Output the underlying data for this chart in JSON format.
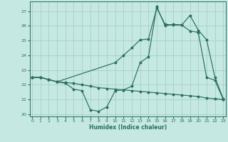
{
  "xlabel": "Humidex (Indice chaleur)",
  "background_color": "#c5e8e2",
  "grid_color": "#9dccc4",
  "line_color": "#2a6e62",
  "xlim": [
    -0.3,
    23.3
  ],
  "ylim": [
    19.85,
    27.65
  ],
  "yticks": [
    20,
    21,
    22,
    23,
    24,
    25,
    26,
    27
  ],
  "xticks": [
    0,
    1,
    2,
    3,
    4,
    5,
    6,
    7,
    8,
    9,
    10,
    11,
    12,
    13,
    14,
    15,
    16,
    17,
    18,
    19,
    20,
    21,
    22,
    23
  ],
  "line1_x": [
    0,
    1,
    2,
    3,
    4,
    5,
    6,
    7,
    8,
    9,
    10,
    11,
    12,
    13,
    14,
    15,
    16,
    17,
    18,
    19,
    20,
    21,
    22,
    23
  ],
  "line1_y": [
    22.5,
    22.5,
    22.35,
    22.2,
    22.15,
    22.1,
    22.0,
    21.9,
    21.8,
    21.75,
    21.7,
    21.65,
    21.6,
    21.55,
    21.5,
    21.45,
    21.4,
    21.35,
    21.3,
    21.25,
    21.2,
    21.1,
    21.05,
    21.0
  ],
  "line2_x": [
    0,
    1,
    2,
    3,
    4,
    5,
    6,
    7,
    8,
    9,
    10,
    11,
    12,
    13,
    14,
    15,
    16,
    17,
    18,
    19,
    20,
    21,
    22,
    23
  ],
  "line2_y": [
    22.5,
    22.5,
    22.35,
    22.2,
    22.1,
    21.7,
    21.6,
    20.3,
    20.2,
    20.5,
    21.6,
    21.65,
    21.9,
    23.5,
    23.9,
    27.3,
    26.0,
    26.1,
    26.05,
    25.65,
    25.55,
    22.5,
    22.3,
    21.0
  ],
  "line3_x": [
    0,
    1,
    2,
    3,
    10,
    11,
    12,
    13,
    14,
    15,
    16,
    17,
    18,
    19,
    20,
    21,
    22,
    23
  ],
  "line3_y": [
    22.5,
    22.5,
    22.35,
    22.2,
    23.5,
    24.0,
    24.5,
    25.05,
    25.1,
    27.2,
    26.1,
    26.05,
    26.05,
    26.7,
    25.7,
    25.05,
    22.5,
    21.05
  ]
}
